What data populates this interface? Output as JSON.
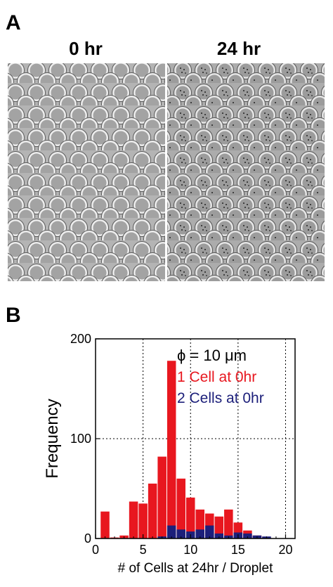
{
  "panel_a": {
    "letter": "A",
    "left_title": "0 hr",
    "right_title": "24 hr"
  },
  "panel_b": {
    "letter": "B"
  },
  "chart_data": {
    "type": "bar",
    "ylabel": "Frequency",
    "xlabel": "# of Cells at 24hr / Droplet",
    "annotation": "ϕ = 10 μm",
    "xlim": [
      0,
      21
    ],
    "ylim": [
      0,
      200
    ],
    "xticks": [
      0,
      5,
      10,
      15,
      20
    ],
    "yticks": [
      0,
      100,
      200
    ],
    "grid": true,
    "series": [
      {
        "name": "1 Cell at 0hr",
        "color": "#e8171f",
        "points": [
          [
            1,
            27
          ],
          [
            2,
            1
          ],
          [
            3,
            3
          ],
          [
            4,
            37
          ],
          [
            5,
            35
          ],
          [
            6,
            55
          ],
          [
            7,
            82
          ],
          [
            8,
            178
          ],
          [
            9,
            60
          ],
          [
            10,
            41
          ],
          [
            11,
            29
          ],
          [
            12,
            25
          ],
          [
            13,
            22
          ],
          [
            14,
            29
          ],
          [
            15,
            16
          ],
          [
            16,
            8
          ],
          [
            17,
            3
          ],
          [
            18,
            1
          ]
        ]
      },
      {
        "name": "2 Cells at 0hr",
        "color": "#1c1f7a",
        "points": [
          [
            7,
            2
          ],
          [
            8,
            13
          ],
          [
            9,
            9
          ],
          [
            10,
            7
          ],
          [
            11,
            9
          ],
          [
            12,
            13
          ],
          [
            13,
            5
          ],
          [
            14,
            3
          ],
          [
            15,
            6
          ],
          [
            16,
            5
          ],
          [
            17,
            3
          ],
          [
            18,
            2
          ]
        ]
      }
    ]
  }
}
